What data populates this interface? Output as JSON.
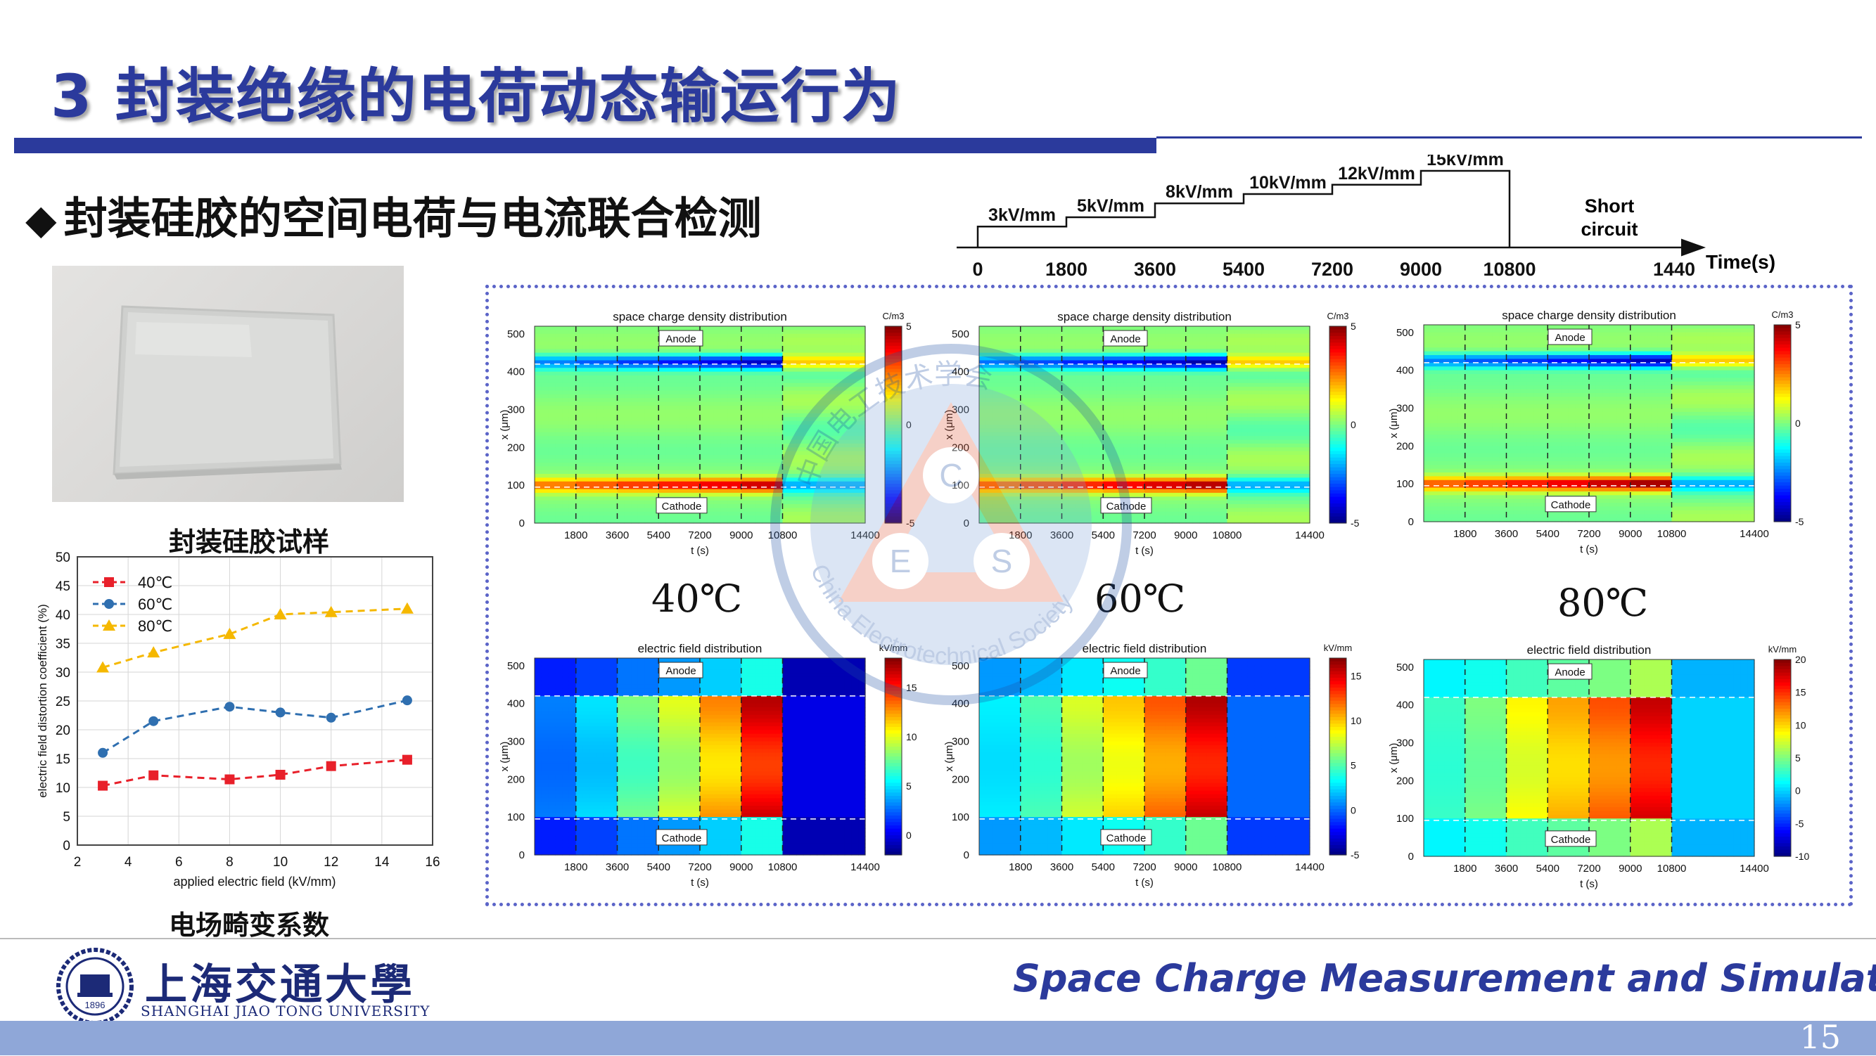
{
  "title": "3 封装绝缘的电荷动态输运行为",
  "subtitle": {
    "bullet": "◆",
    "text": "封装硅胶的空间电荷与电流联合检测"
  },
  "sample": {
    "caption": "封装硅胶试样"
  },
  "distortion": {
    "caption": "电场畸变系数"
  },
  "temperatures": [
    "40℃",
    "60℃",
    "80℃"
  ],
  "footer": {
    "course": "Space Charge Measurement and Simulation",
    "page": "15",
    "university_cn": "上海交通大學",
    "university_en": "SHANGHAI JIAO TONG UNIVERSITY",
    "seal_year": "1896"
  },
  "watermark": {
    "society_cn": "中国电工技术学会",
    "society_en": "China Electrotechnical Society",
    "letters": [
      "C",
      "E",
      "S"
    ]
  },
  "heatmap": {
    "charge_title": "space charge density distribution",
    "field_title": "electric field distribution",
    "xlabel": "t (s)",
    "ylabel": "x (μm)",
    "x_ticks": [
      "1800",
      "3600",
      "5400",
      "7200",
      "9000",
      "10800",
      "14400"
    ],
    "y_ticks": [
      "0",
      "100",
      "200",
      "300",
      "400",
      "500"
    ],
    "anode_label": "Anode",
    "cathode_label": "Cathode",
    "charge_unit": "C/m3",
    "field_unit": "kV/mm",
    "charge_colorbar_ticks": [
      "5",
      "0",
      "-5"
    ],
    "field_colorbar_ticks_40": [
      "15",
      "10",
      "5",
      "0"
    ],
    "field_colorbar_ticks_60": [
      "15",
      "10",
      "5",
      "0",
      "-5"
    ],
    "field_colorbar_ticks_80": [
      "20",
      "15",
      "10",
      "5",
      "0",
      "-5",
      "-10"
    ]
  },
  "chart_data": [
    {
      "type": "line",
      "title": "",
      "xlabel": "applied electric field (kV/mm)",
      "ylabel": "electric field distortion coefficient (%)",
      "xlim": [
        2,
        16
      ],
      "ylim": [
        0,
        50
      ],
      "x_ticks": [
        2,
        4,
        6,
        8,
        10,
        12,
        14,
        16
      ],
      "y_ticks": [
        0,
        5,
        10,
        15,
        20,
        25,
        30,
        35,
        40,
        45,
        50
      ],
      "grid": true,
      "legend": "top-left",
      "x": [
        3,
        5,
        8,
        10,
        12,
        15
      ],
      "series": [
        {
          "name": "40℃",
          "values": [
            10.3,
            12.1,
            11.4,
            12.2,
            13.7,
            14.8
          ],
          "color": "#e8202a",
          "marker": "square"
        },
        {
          "name": "60℃",
          "values": [
            16.0,
            21.5,
            24.0,
            23.0,
            22.1,
            25.1
          ],
          "color": "#2f6fb0",
          "marker": "circle"
        },
        {
          "name": "80℃",
          "values": [
            30.8,
            33.4,
            36.6,
            40.0,
            40.4,
            41.0
          ],
          "color": "#f5b800",
          "marker": "triangle"
        }
      ]
    },
    {
      "type": "line",
      "title": "",
      "xlabel": "Time(s)",
      "ylabel": "",
      "x_ticks": [
        "0",
        "1800",
        "3600",
        "5400",
        "7200",
        "9000",
        "10800",
        "1440"
      ],
      "steps": [
        {
          "label": "3kV/mm",
          "start": 0,
          "end": 1800,
          "level": 3
        },
        {
          "label": "5kV/mm",
          "start": 1800,
          "end": 3600,
          "level": 5
        },
        {
          "label": "8kV/mm",
          "start": 3600,
          "end": 5400,
          "level": 8
        },
        {
          "label": "10kV/mm",
          "start": 5400,
          "end": 7200,
          "level": 10
        },
        {
          "label": "12kV/mm",
          "start": 7200,
          "end": 9000,
          "level": 12
        },
        {
          "label": "15kV/mm",
          "start": 9000,
          "end": 10800,
          "level": 15
        }
      ],
      "annotation": [
        "Short",
        "circuit"
      ]
    },
    {
      "type": "heatmap",
      "title": "space charge density distribution",
      "temperature": "40℃",
      "xlim": [
        0,
        14400
      ],
      "ylim": [
        0,
        520
      ],
      "colorbar": [
        -5,
        5
      ],
      "unit": "C/m3",
      "anode_charge_peak": 4.5,
      "cathode_charge_peak": -4.5
    },
    {
      "type": "heatmap",
      "title": "space charge density distribution",
      "temperature": "60℃",
      "xlim": [
        0,
        14400
      ],
      "ylim": [
        0,
        520
      ],
      "colorbar": [
        -5,
        5
      ],
      "unit": "C/m3",
      "anode_charge_peak": 4.8,
      "cathode_charge_peak": -4.8
    },
    {
      "type": "heatmap",
      "title": "space charge density distribution",
      "temperature": "80℃",
      "xlim": [
        0,
        14400
      ],
      "ylim": [
        0,
        520
      ],
      "colorbar": [
        -5,
        5
      ],
      "unit": "C/m3",
      "anode_charge_peak": 5,
      "cathode_charge_peak": -4.6
    },
    {
      "type": "heatmap",
      "title": "electric field distribution",
      "temperature": "40℃",
      "xlim": [
        0,
        14400
      ],
      "ylim": [
        0,
        520
      ],
      "colorbar": [
        -2,
        18
      ],
      "unit": "kV/mm",
      "field_by_step": [
        3,
        5,
        8,
        10,
        13,
        17
      ]
    },
    {
      "type": "heatmap",
      "title": "electric field distribution",
      "temperature": "60℃",
      "xlim": [
        0,
        14400
      ],
      "ylim": [
        0,
        520
      ],
      "colorbar": [
        -5,
        17
      ],
      "unit": "kV/mm",
      "field_by_step": [
        3,
        5,
        8,
        10,
        12.5,
        16
      ]
    },
    {
      "type": "heatmap",
      "title": "electric field distribution",
      "temperature": "80℃",
      "xlim": [
        0,
        14400
      ],
      "ylim": [
        0,
        520
      ],
      "colorbar": [
        -10,
        20
      ],
      "unit": "kV/mm",
      "field_by_step": [
        3,
        5,
        9,
        11.5,
        14,
        18
      ]
    }
  ]
}
